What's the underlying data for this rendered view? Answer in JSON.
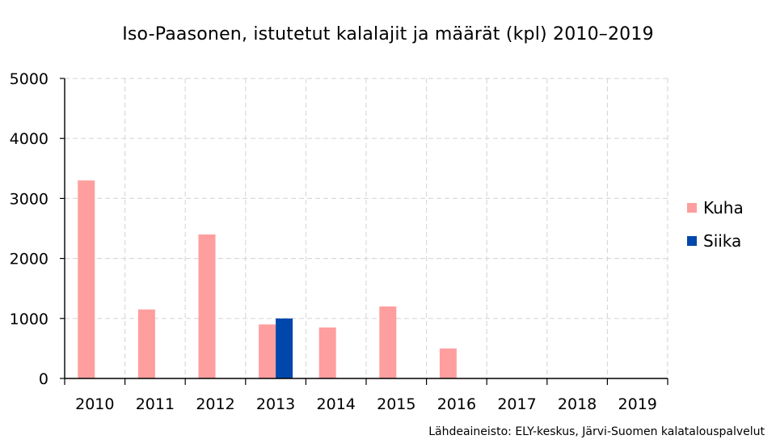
{
  "chart_data": {
    "type": "bar",
    "title": "Iso-Paasonen, istutetut kalalajit ja määrät (kpl) 2010–2019",
    "xlabel": "",
    "ylabel": "",
    "categories": [
      "2010",
      "2011",
      "2012",
      "2013",
      "2014",
      "2015",
      "2016",
      "2017",
      "2018",
      "2019"
    ],
    "series": [
      {
        "name": "Kuha",
        "color": "#ff9e9e",
        "values": [
          3300,
          1150,
          2400,
          900,
          850,
          1200,
          500,
          0,
          0,
          0
        ]
      },
      {
        "name": "Siika",
        "color": "#0047ab",
        "values": [
          0,
          0,
          0,
          1000,
          0,
          0,
          0,
          0,
          0,
          0
        ]
      }
    ],
    "ylim": [
      0,
      5000
    ],
    "yticks": [
      0,
      1000,
      2000,
      3000,
      4000,
      5000
    ],
    "grid": true,
    "legend_position": "right",
    "source": "Lähdeaineisto: ELY-keskus, Järvi-Suomen kalatalouspalvelut"
  }
}
